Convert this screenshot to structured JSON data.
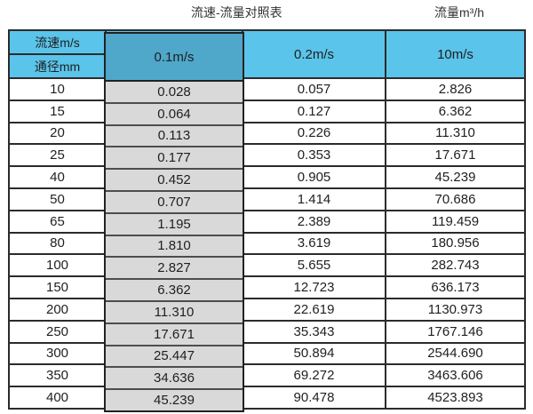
{
  "colors": {
    "header_blue": "#5BC4EA",
    "highlight_header_blue": "#4FA7C9",
    "highlight_gray": "#D9D9D9",
    "grid_line": "#2B2B2B"
  },
  "chart_data": {
    "type": "table",
    "title": "流速-流量对照表",
    "unit_label": "流量m³/h",
    "corner_top": "流速m/s",
    "corner_bottom": "通径mm",
    "velocity_columns": [
      "0.1m/s",
      "0.2m/s",
      "10m/s"
    ],
    "highlighted_column": "0.1m/s",
    "rows": [
      [
        "10",
        "0.028",
        "0.057",
        "2.826"
      ],
      [
        "15",
        "0.064",
        "0.127",
        "6.362"
      ],
      [
        "20",
        "0.113",
        "0.226",
        "11.310"
      ],
      [
        "25",
        "0.177",
        "0.353",
        "17.671"
      ],
      [
        "40",
        "0.452",
        "0.905",
        "45.239"
      ],
      [
        "50",
        "0.707",
        "1.414",
        "70.686"
      ],
      [
        "65",
        "1.195",
        "2.389",
        "119.459"
      ],
      [
        "80",
        "1.810",
        "3.619",
        "180.956"
      ],
      [
        "100",
        "2.827",
        "5.655",
        "282.743"
      ],
      [
        "150",
        "6.362",
        "12.723",
        "636.173"
      ],
      [
        "200",
        "11.310",
        "22.619",
        "1130.973"
      ],
      [
        "250",
        "17.671",
        "35.343",
        "1767.146"
      ],
      [
        "300",
        "25.447",
        "50.894",
        "2544.690"
      ],
      [
        "350",
        "34.636",
        "69.272",
        "3463.606"
      ],
      [
        "400",
        "45.239",
        "90.478",
        "4523.893"
      ]
    ]
  }
}
